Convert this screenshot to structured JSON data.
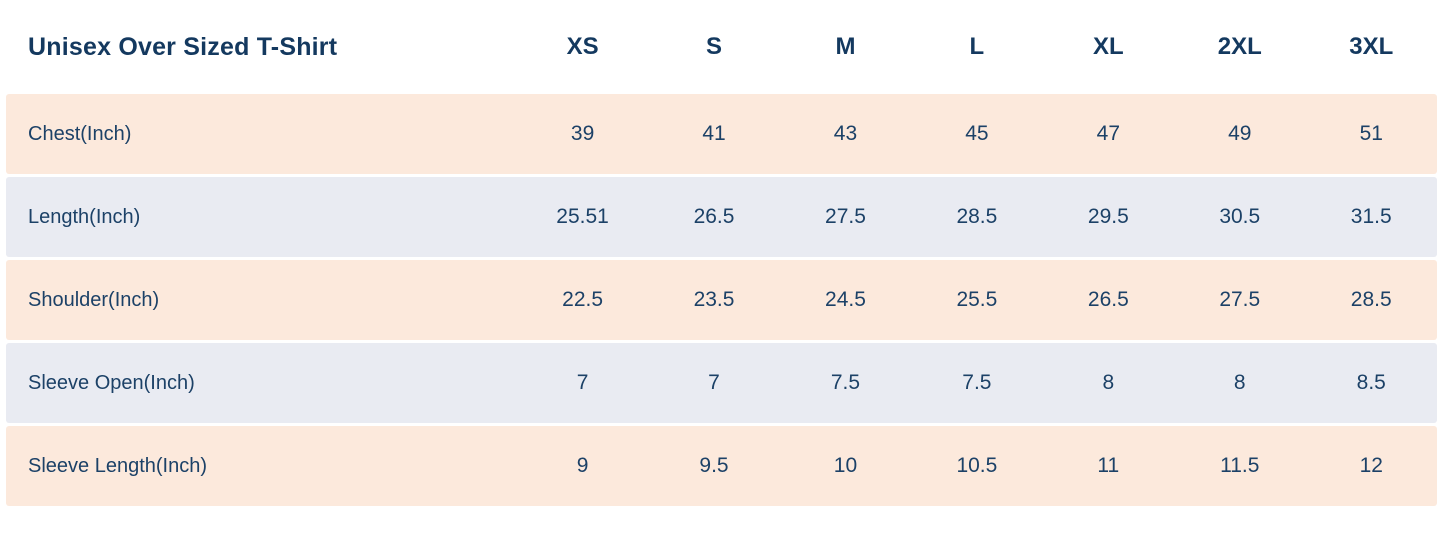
{
  "chart_data": {
    "type": "table",
    "title": "Unisex Over Sized T-Shirt",
    "columns": [
      "XS",
      "S",
      "M",
      "L",
      "XL",
      "2XL",
      "3XL"
    ],
    "rows": [
      {
        "label": "Chest(Inch)",
        "values": [
          "39",
          "41",
          "43",
          "45",
          "47",
          "49",
          "51"
        ]
      },
      {
        "label": "Length(Inch)",
        "values": [
          "25.51",
          "26.5",
          "27.5",
          "28.5",
          "29.5",
          "30.5",
          "31.5"
        ]
      },
      {
        "label": "Shoulder(Inch)",
        "values": [
          "22.5",
          "23.5",
          "24.5",
          "25.5",
          "26.5",
          "27.5",
          "28.5"
        ]
      },
      {
        "label": "Sleeve Open(Inch)",
        "values": [
          "7",
          "7",
          "7.5",
          "7.5",
          "8",
          "8",
          "8.5"
        ]
      },
      {
        "label": "Sleeve Length(Inch)",
        "values": [
          "9",
          "9.5",
          "10",
          "10.5",
          "11",
          "11.5",
          "12"
        ]
      }
    ],
    "layout": {
      "row_band_style": "alternating",
      "units": "inches"
    }
  },
  "colors": {
    "background": "#ffffff",
    "row_peach": "#fce9dc",
    "row_blue": "#e9ebf2",
    "text_navy": "#14395f",
    "value_navy": "#1c4167"
  }
}
